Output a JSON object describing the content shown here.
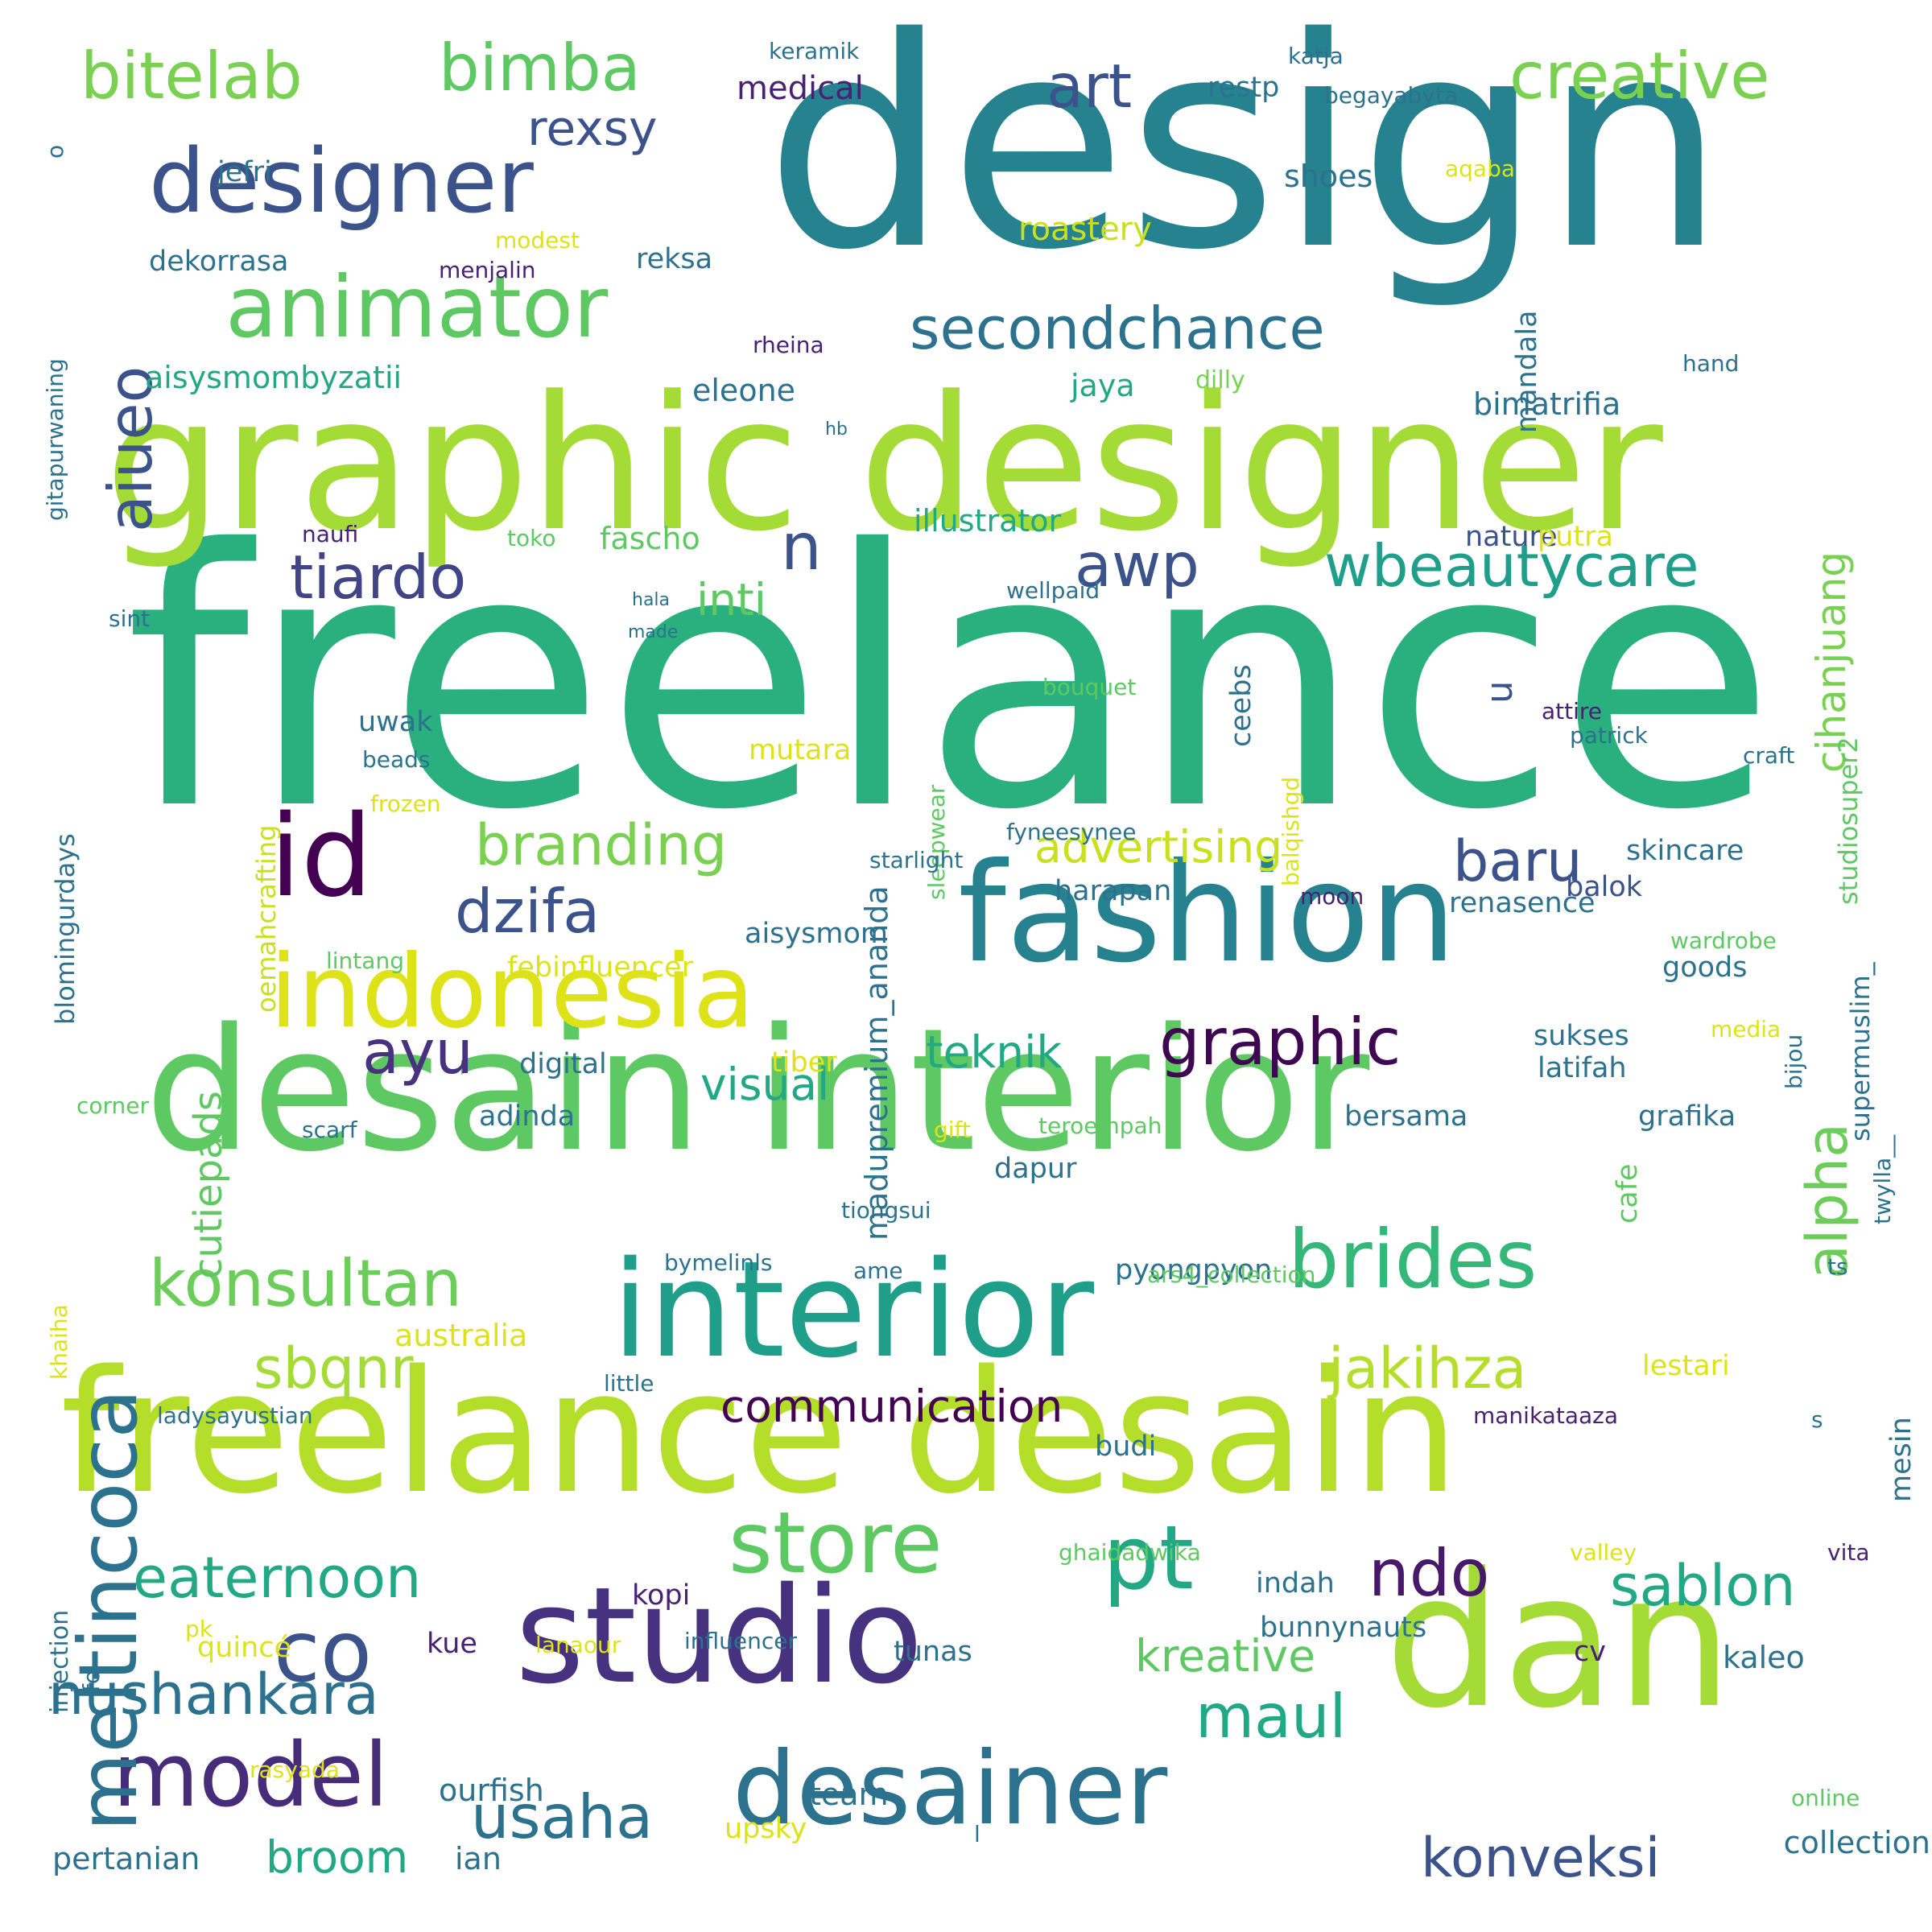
{
  "words": [
    {
      "text": "design",
      "color": "#26828e"
    },
    {
      "text": "freelance",
      "color": "#2ab07f"
    },
    {
      "text": "graphic designer",
      "color": "#a5db36"
    },
    {
      "text": "desain interior",
      "color": "#5ec962"
    },
    {
      "text": "freelance desain",
      "color": "#b5de2b"
    },
    {
      "text": "interior",
      "color": "#1f9e89"
    },
    {
      "text": "studio",
      "color": "#46327e"
    },
    {
      "text": "dan",
      "color": "#a5db36"
    },
    {
      "text": "fashion",
      "color": "#26828e"
    },
    {
      "text": "desainer",
      "color": "#2c728e"
    },
    {
      "text": "id",
      "color": "#440154"
    },
    {
      "text": "indonesia",
      "color": "#dde318"
    },
    {
      "text": "designer",
      "color": "#3b528b"
    },
    {
      "text": "animator",
      "color": "#5ec962"
    },
    {
      "text": "model",
      "color": "#472c7a"
    },
    {
      "text": "store",
      "color": "#5ec962"
    },
    {
      "text": "co",
      "color": "#3b528b"
    },
    {
      "text": "pt",
      "color": "#22a884"
    },
    {
      "text": "brides",
      "color": "#35b779"
    },
    {
      "text": "meltincoca",
      "color": "#2c728e"
    },
    {
      "text": "graphic",
      "color": "#3e0751"
    },
    {
      "text": "bimba",
      "color": "#5ec962"
    },
    {
      "text": "bitelab",
      "color": "#7ad151"
    },
    {
      "text": "creative",
      "color": "#7ad151"
    },
    {
      "text": "secondchance",
      "color": "#2c728e"
    },
    {
      "text": "wbeautycare",
      "color": "#1f9e89"
    },
    {
      "text": "tiardo",
      "color": "#414487"
    },
    {
      "text": "branding",
      "color": "#7ad151"
    },
    {
      "text": "konsultan",
      "color": "#6ccd5a"
    },
    {
      "text": "nushankara",
      "color": "#2c728e"
    },
    {
      "text": "eaternoon",
      "color": "#22a884"
    },
    {
      "text": "usaha",
      "color": "#2c728e"
    },
    {
      "text": "konveksi",
      "color": "#3b528b"
    },
    {
      "text": "sablon",
      "color": "#22a884"
    },
    {
      "text": "maul",
      "color": "#22a884"
    },
    {
      "text": "jakihza",
      "color": "#b5de2b"
    },
    {
      "text": "sbqnr",
      "color": "#a5db36"
    },
    {
      "text": "dzifa",
      "color": "#3b528b"
    },
    {
      "text": "baru",
      "color": "#3b528b"
    },
    {
      "text": "alpha",
      "color": "#6ccd5a"
    },
    {
      "text": "aiueo",
      "color": "#3b528b"
    },
    {
      "text": "art",
      "color": "#3b528b"
    },
    {
      "text": "rexsy",
      "color": "#3b528b"
    },
    {
      "text": "awp",
      "color": "#3b528b"
    },
    {
      "text": "n",
      "color": "#3b528b"
    },
    {
      "text": "ayu",
      "color": "#46327e"
    },
    {
      "text": "inti",
      "color": "#5ec962"
    },
    {
      "text": "advertising",
      "color": "#c8e020"
    },
    {
      "text": "cihanjuang",
      "color": "#7ad151"
    },
    {
      "text": "communication",
      "color": "#440154"
    },
    {
      "text": "teknik",
      "color": "#22a884"
    },
    {
      "text": "visual",
      "color": "#22a884"
    },
    {
      "text": "kreative",
      "color": "#5ec962"
    },
    {
      "text": "ndo",
      "color": "#48186a"
    },
    {
      "text": "broom",
      "color": "#22a884"
    },
    {
      "text": "cutiepads",
      "color": "#5ec962"
    },
    {
      "text": "u",
      "color": "#3b528b"
    },
    {
      "text": "medical",
      "color": "#482173"
    },
    {
      "text": "restp",
      "color": "#2c728e"
    },
    {
      "text": "begayabyta",
      "color": "#2c728e"
    },
    {
      "text": "katja",
      "color": "#2c728e"
    },
    {
      "text": "keramik",
      "color": "#2c728e"
    },
    {
      "text": "jefri",
      "color": "#2c728e"
    },
    {
      "text": "shoes",
      "color": "#2c728e"
    },
    {
      "text": "aqaba",
      "color": "#dde318"
    },
    {
      "text": "roastery",
      "color": "#c8e020"
    },
    {
      "text": "modest",
      "color": "#dde318"
    },
    {
      "text": "menjalin",
      "color": "#482173"
    },
    {
      "text": "dekorrasa",
      "color": "#2c728e"
    },
    {
      "text": "reksa",
      "color": "#2c728e"
    },
    {
      "text": "mandala",
      "color": "#2c728e"
    },
    {
      "text": "gitapurwaning",
      "color": "#2c728e"
    },
    {
      "text": "o",
      "color": "#2c728e"
    },
    {
      "text": "rheina",
      "color": "#482173"
    },
    {
      "text": "hand",
      "color": "#2c728e"
    },
    {
      "text": "aisysmombyzatii",
      "color": "#22a884"
    },
    {
      "text": "eleone",
      "color": "#2c728e"
    },
    {
      "text": "jaya",
      "color": "#22a884"
    },
    {
      "text": "dilly",
      "color": "#7ad151"
    },
    {
      "text": "bimatrifia",
      "color": "#2c728e"
    },
    {
      "text": "madupremium_ananda",
      "color": "#2c728e"
    },
    {
      "text": "blomingurdays",
      "color": "#2c728e"
    },
    {
      "text": "hb",
      "color": "#2c728e"
    },
    {
      "text": "illustrator",
      "color": "#22a884"
    },
    {
      "text": "naufi",
      "color": "#482173"
    },
    {
      "text": "toko",
      "color": "#5ec962"
    },
    {
      "text": "fascho",
      "color": "#5ec962"
    },
    {
      "text": "nature",
      "color": "#3b528b"
    },
    {
      "text": "putra",
      "color": "#dde318"
    },
    {
      "text": "studiosuper2",
      "color": "#5ec962"
    },
    {
      "text": "supermuslim_",
      "color": "#2c728e"
    },
    {
      "text": "oemahcrafting",
      "color": "#c8e020"
    },
    {
      "text": "ceebs",
      "color": "#2c728e"
    },
    {
      "text": "sint",
      "color": "#2c728e"
    },
    {
      "text": "hala",
      "color": "#2c728e"
    },
    {
      "text": "made",
      "color": "#2c728e"
    },
    {
      "text": "wellpaid",
      "color": "#2c728e"
    },
    {
      "text": "balqishgd",
      "color": "#dde318"
    },
    {
      "text": "sleepwear",
      "color": "#5ec962"
    },
    {
      "text": "uwak",
      "color": "#2c728e"
    },
    {
      "text": "bouquet",
      "color": "#5ec962"
    },
    {
      "text": "attire",
      "color": "#482173"
    },
    {
      "text": "patrick",
      "color": "#2c728e"
    },
    {
      "text": "beads",
      "color": "#2c728e"
    },
    {
      "text": "mutara",
      "color": "#dde318"
    },
    {
      "text": "craft",
      "color": "#2c728e"
    },
    {
      "text": "frozen",
      "color": "#dde318"
    },
    {
      "text": "fyneesynee",
      "color": "#2c728e"
    },
    {
      "text": "starlight",
      "color": "#2c728e"
    },
    {
      "text": "skincare",
      "color": "#2c728e"
    },
    {
      "text": "harapan",
      "color": "#2c728e"
    },
    {
      "text": "moon",
      "color": "#482173"
    },
    {
      "text": "renasence",
      "color": "#2c728e"
    },
    {
      "text": "balok",
      "color": "#3b528b"
    },
    {
      "text": "aisysmom",
      "color": "#2c728e"
    },
    {
      "text": "febinfluencer",
      "color": "#dde318"
    },
    {
      "text": "lintang",
      "color": "#5ec962"
    },
    {
      "text": "wardrobe",
      "color": "#5ec962"
    },
    {
      "text": "goods",
      "color": "#2c728e"
    },
    {
      "text": "sukses",
      "color": "#2c728e"
    },
    {
      "text": "media",
      "color": "#dde318"
    },
    {
      "text": "bijou",
      "color": "#2c728e"
    },
    {
      "text": "digital",
      "color": "#2c728e"
    },
    {
      "text": "tiber",
      "color": "#dde318"
    },
    {
      "text": "latifah",
      "color": "#2c728e"
    },
    {
      "text": "corner",
      "color": "#5ec962"
    },
    {
      "text": "adinda",
      "color": "#2c728e"
    },
    {
      "text": "bersama",
      "color": "#2c728e"
    },
    {
      "text": "grafika",
      "color": "#2c728e"
    },
    {
      "text": "scarf",
      "color": "#2c728e"
    },
    {
      "text": "gift",
      "color": "#dde318"
    },
    {
      "text": "teroempah",
      "color": "#5ec962"
    },
    {
      "text": "twylla__",
      "color": "#2c728e"
    },
    {
      "text": "dapur",
      "color": "#2c728e"
    },
    {
      "text": "cafe",
      "color": "#5ec962"
    },
    {
      "text": "tiongsui",
      "color": "#2c728e"
    },
    {
      "text": "bymelinls",
      "color": "#2c728e"
    },
    {
      "text": "ame",
      "color": "#2c728e"
    },
    {
      "text": "pyongpyon",
      "color": "#2c728e"
    },
    {
      "text": "ars4_collection",
      "color": "#5ec962"
    },
    {
      "text": "ts",
      "color": "#2c728e"
    },
    {
      "text": "khaiha",
      "color": "#dde318"
    },
    {
      "text": "australia",
      "color": "#dde318"
    },
    {
      "text": "mesin",
      "color": "#2c728e"
    },
    {
      "text": "little",
      "color": "#2c728e"
    },
    {
      "text": "lestari",
      "color": "#dde318"
    },
    {
      "text": "ladysayustian",
      "color": "#2c728e"
    },
    {
      "text": "manikataaza",
      "color": "#482173"
    },
    {
      "text": "s",
      "color": "#2c728e"
    },
    {
      "text": "budi",
      "color": "#2c728e"
    },
    {
      "text": "injection",
      "color": "#2c728e"
    },
    {
      "text": "ghaidadwika",
      "color": "#5ec962"
    },
    {
      "text": "valley",
      "color": "#dde318"
    },
    {
      "text": "vita",
      "color": "#482173"
    },
    {
      "text": "indah",
      "color": "#2c728e"
    },
    {
      "text": "kopi",
      "color": "#482173"
    },
    {
      "text": "bunnynauts",
      "color": "#2c728e"
    },
    {
      "text": "pk",
      "color": "#dde318"
    },
    {
      "text": "kue",
      "color": "#482173"
    },
    {
      "text": "lanaour",
      "color": "#dde318"
    },
    {
      "text": "influencer",
      "color": "#2c728e"
    },
    {
      "text": "tunas",
      "color": "#2c728e"
    },
    {
      "text": "cv",
      "color": "#482173"
    },
    {
      "text": "kaleo",
      "color": "#2c728e"
    },
    {
      "text": "quincé",
      "color": "#dde318"
    },
    {
      "text": "fe",
      "color": "#2c728e"
    },
    {
      "text": "rasyada",
      "color": "#dde318"
    },
    {
      "text": "ourfish",
      "color": "#2c728e"
    },
    {
      "text": "team",
      "color": "#2c728e"
    },
    {
      "text": "upsky",
      "color": "#dde318"
    },
    {
      "text": "l",
      "color": "#2c728e"
    },
    {
      "text": "online",
      "color": "#5ec962"
    },
    {
      "text": "pertanian",
      "color": "#2c728e"
    },
    {
      "text": "ian",
      "color": "#2c728e"
    },
    {
      "text": "collection",
      "color": "#2c728e"
    }
  ]
}
